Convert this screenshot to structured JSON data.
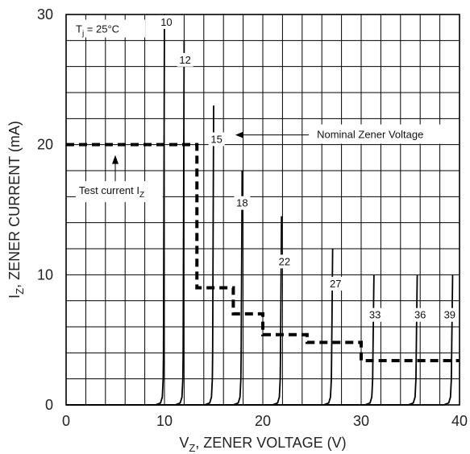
{
  "chart_data": {
    "type": "line",
    "title": "",
    "xlabel": "V",
    "xlabel_sub": "Z",
    "xlabel_rest": ", ZENER VOLTAGE (V)",
    "ylabel": "I",
    "ylabel_sub": "Z",
    "ylabel_rest": ", ZENER CURRENT (mA)",
    "xlim": [
      0,
      40
    ],
    "ylim": [
      0,
      30
    ],
    "x_major_ticks": [
      0,
      10,
      20,
      30,
      40
    ],
    "y_major_ticks": [
      0,
      10,
      20,
      30
    ],
    "x_grid_step": 2,
    "y_grid_step": 2,
    "grid": true,
    "condition": {
      "main": "T",
      "sub": "j",
      "rest": " = 25°C"
    },
    "series": [
      {
        "name": "10",
        "knee": 9.9,
        "top": 30
      },
      {
        "name": "12",
        "knee": 11.9,
        "top": 28
      },
      {
        "name": "15",
        "knee": 14.9,
        "top": 23
      },
      {
        "name": "18",
        "knee": 17.8,
        "top": 18
      },
      {
        "name": "22",
        "knee": 21.8,
        "top": 14.5
      },
      {
        "name": "27",
        "knee": 27.0,
        "top": 12
      },
      {
        "name": "33",
        "knee": 31.2,
        "top": 10
      },
      {
        "name": "36",
        "knee": 35.6,
        "top": 10
      },
      {
        "name": "39",
        "knee": 39.2,
        "top": 10
      }
    ],
    "curve_labels": [
      {
        "text": "10",
        "x": 10.2,
        "y": 29.2
      },
      {
        "text": "12",
        "x": 12.1,
        "y": 26.3
      },
      {
        "text": "15",
        "x": 15.3,
        "y": 20.2
      },
      {
        "text": "18",
        "x": 17.9,
        "y": 15.3
      },
      {
        "text": "22",
        "x": 22.2,
        "y": 10.8
      },
      {
        "text": "27",
        "x": 27.4,
        "y": 9.1
      },
      {
        "text": "33",
        "x": 31.4,
        "y": 6.7
      },
      {
        "text": "36",
        "x": 36.0,
        "y": 6.7
      },
      {
        "text": "39",
        "x": 39.0,
        "y": 6.7
      }
    ],
    "test_current_path": [
      [
        0,
        20
      ],
      [
        13.3,
        20
      ],
      [
        13.3,
        9
      ],
      [
        17.0,
        9
      ],
      [
        17.0,
        7
      ],
      [
        20.0,
        7
      ],
      [
        20.0,
        5.4
      ],
      [
        24.5,
        5.4
      ],
      [
        24.5,
        4.8
      ],
      [
        30.0,
        4.8
      ],
      [
        30.0,
        3.4
      ],
      [
        40,
        3.4
      ]
    ],
    "annotations": {
      "nominal": {
        "text": "Nominal Zener Voltage",
        "x": 25.5,
        "y": 20.5
      },
      "test_current": {
        "text": "Test current I",
        "sub": "Z",
        "x": 1.3,
        "y": 16.2
      }
    }
  }
}
